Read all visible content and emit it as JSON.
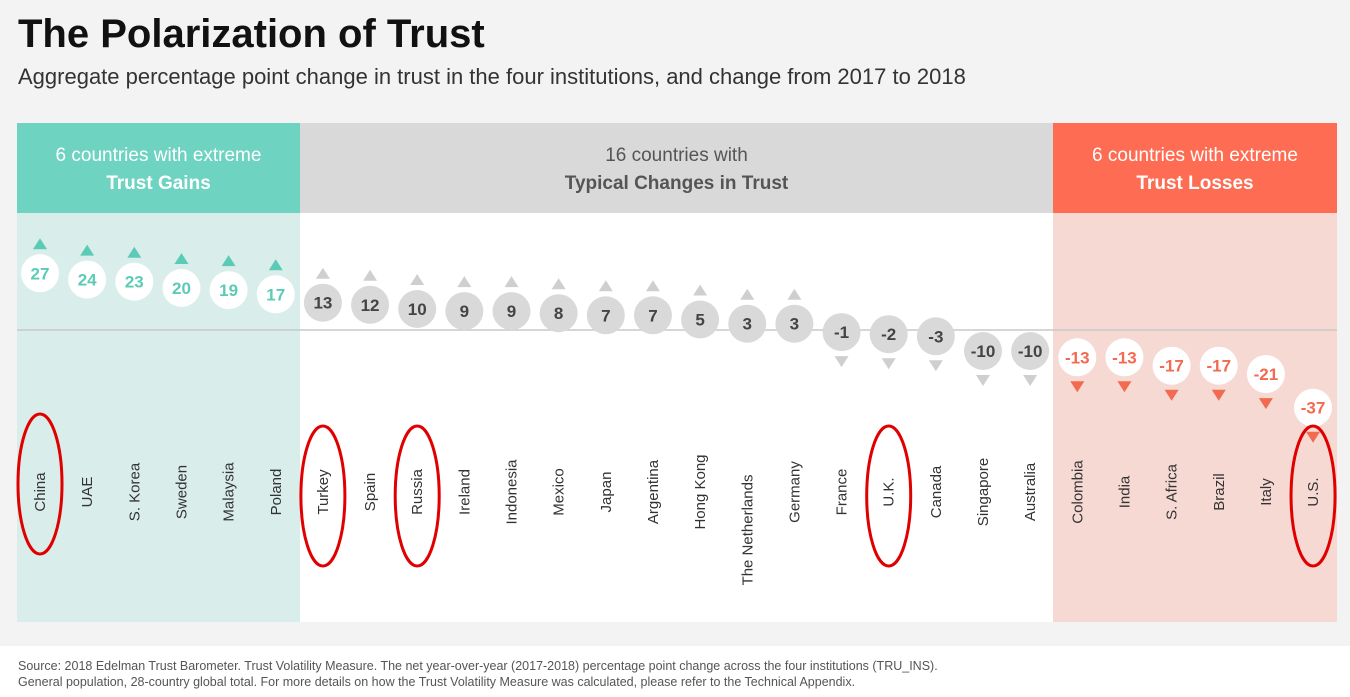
{
  "title": "The Polarization of Trust",
  "subtitle": "Aggregate percentage point change in trust in the four institutions, and change from 2017 to 2018",
  "chart_data": {
    "type": "scatter",
    "title": "The Polarization of Trust",
    "groups": [
      {
        "line1": "6 countries with extreme",
        "line2": "Trust Gains",
        "count": 6,
        "header_color": "#6fd3c1",
        "body_color": "#d9eeea",
        "mark_color": "#5ccbb6"
      },
      {
        "line1": "16 countries with",
        "line2": "Typical Changes in Trust",
        "count": 16,
        "header_color": "#d9d9d9",
        "body_color": "#ffffff",
        "mark_color": "#cfcfcf"
      },
      {
        "line1": "6 countries with extreme",
        "line2": "Trust Losses",
        "count": 6,
        "header_color": "#fe6d53",
        "body_color": "#f6d9d3",
        "mark_color": "#f26a50"
      }
    ],
    "categories": [
      "China",
      "UAE",
      "S. Korea",
      "Sweden",
      "Malaysia",
      "Poland",
      "Turkey",
      "Spain",
      "Russia",
      "Ireland",
      "Indonesia",
      "Mexico",
      "Japan",
      "Argentina",
      "Hong Kong",
      "The Netherlands",
      "Germany",
      "France",
      "U.K.",
      "Canada",
      "Singapore",
      "Australia",
      "Colombia",
      "India",
      "S. Africa",
      "Brazil",
      "Italy",
      "U.S."
    ],
    "values": [
      27,
      24,
      23,
      20,
      19,
      17,
      13,
      12,
      10,
      9,
      9,
      8,
      7,
      7,
      5,
      3,
      3,
      -1,
      -2,
      -3,
      -10,
      -10,
      -13,
      -13,
      -17,
      -17,
      -21,
      -37
    ],
    "highlighted": [
      "China",
      "Turkey",
      "Russia",
      "U.K.",
      "U.S."
    ],
    "highlight_color": "#e00000"
  },
  "source": "Source: 2018 Edelman Trust Barometer. Trust Volatility Measure. The net year-over-year (2017-2018) percentage point change across the four institutions (TRU_INS). General population, 28-country global total. For more details on how the Trust Volatility Measure was calculated, please refer to the Technical Appendix."
}
